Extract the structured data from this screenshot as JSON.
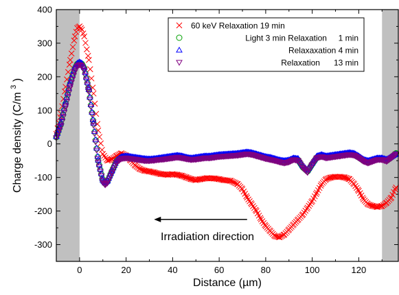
{
  "chart_data": {
    "type": "scatter",
    "xlabel": "Distance (µm)",
    "ylabel": "Charge density (C/m",
    "ylabel_sup": "3",
    "ylabel_close": ")",
    "xlim": [
      -10,
      137
    ],
    "ylim": [
      -350,
      400
    ],
    "x_ticks": [
      0,
      20,
      40,
      60,
      80,
      100,
      120
    ],
    "x_tick_labels": [
      "0",
      "20",
      "40",
      "60",
      "80",
      "100",
      "120"
    ],
    "y_ticks": [
      -300,
      -200,
      -100,
      0,
      100,
      200,
      300,
      400
    ],
    "y_tick_labels": [
      "-300",
      "-200",
      "-100",
      "0",
      "100",
      "200",
      "300",
      "400"
    ],
    "shaded_regions": [
      [
        -10,
        0
      ],
      [
        130,
        137
      ]
    ],
    "shade_color": "#c0c0c0",
    "grid": false,
    "legend_position": "top-right",
    "annotation": {
      "text": "Irradiation direction",
      "arrow_from": [
        72,
        -225
      ],
      "arrow_to": [
        32,
        -225
      ]
    },
    "series": [
      {
        "name": "60 keV Relaxation 19 min",
        "marker": "x",
        "color": "#ff0000",
        "x": [
          -10,
          -8,
          -6,
          -4,
          -2,
          -1,
          0,
          1,
          2,
          4,
          6,
          8,
          10,
          12,
          14,
          16,
          18,
          20,
          22,
          24,
          26,
          28,
          30,
          32,
          35,
          38,
          40,
          42,
          44,
          46,
          48,
          50,
          52,
          55,
          58,
          60,
          62,
          65,
          68,
          70,
          72,
          74,
          76,
          78,
          80,
          82,
          84,
          86,
          88,
          90,
          92,
          94,
          96,
          98,
          100,
          102,
          104,
          106,
          108,
          110,
          112,
          114,
          116,
          118,
          120,
          122,
          124,
          126,
          128,
          130,
          132,
          134,
          136
        ],
        "y": [
          30,
          90,
          170,
          250,
          320,
          345,
          350,
          340,
          320,
          250,
          150,
          40,
          -30,
          -50,
          -45,
          -35,
          -28,
          -35,
          -50,
          -65,
          -75,
          -80,
          -82,
          -85,
          -90,
          -92,
          -90,
          -92,
          -95,
          -100,
          -105,
          -108,
          -105,
          -102,
          -103,
          -105,
          -108,
          -110,
          -120,
          -135,
          -160,
          -180,
          -200,
          -225,
          -245,
          -260,
          -275,
          -278,
          -270,
          -255,
          -240,
          -225,
          -210,
          -190,
          -170,
          -145,
          -120,
          -105,
          -100,
          -98,
          -98,
          -100,
          -105,
          -120,
          -140,
          -165,
          -180,
          -185,
          -188,
          -185,
          -175,
          -160,
          -130
        ]
      },
      {
        "name": "Light 3 min Relaxation     1 min",
        "marker": "o",
        "color": "#00a000",
        "x": [
          -10,
          -8,
          -6,
          -4,
          -2,
          -1,
          0,
          1,
          2,
          4,
          6,
          8,
          10,
          11,
          12,
          14,
          16,
          18,
          20,
          22,
          24,
          26,
          28,
          30,
          32,
          34,
          36,
          38,
          40,
          42,
          44,
          46,
          48,
          50,
          52,
          54,
          56,
          58,
          60,
          62,
          64,
          66,
          68,
          70,
          72,
          74,
          76,
          78,
          80,
          82,
          84,
          86,
          88,
          90,
          92,
          94,
          96,
          98,
          100,
          102,
          104,
          106,
          108,
          110,
          112,
          114,
          116,
          118,
          120,
          122,
          124,
          126,
          128,
          130,
          132,
          134,
          136
        ],
        "y": [
          20,
          60,
          120,
          180,
          225,
          238,
          242,
          238,
          225,
          160,
          60,
          -50,
          -110,
          -118,
          -112,
          -80,
          -50,
          -40,
          -40,
          -42,
          -44,
          -46,
          -48,
          -48,
          -47,
          -45,
          -44,
          -42,
          -40,
          -38,
          -40,
          -43,
          -45,
          -44,
          -42,
          -40,
          -40,
          -38,
          -36,
          -35,
          -34,
          -33,
          -32,
          -30,
          -28,
          -30,
          -34,
          -38,
          -42,
          -45,
          -48,
          -52,
          -55,
          -52,
          -45,
          -48,
          -70,
          -82,
          -60,
          -40,
          -36,
          -40,
          -38,
          -36,
          -34,
          -32,
          -30,
          -32,
          -40,
          -50,
          -55,
          -50,
          -45,
          -45,
          -50,
          -40,
          -28
        ]
      },
      {
        "name": "Relaxaxation 4 min",
        "marker": "^",
        "color": "#0000ff",
        "x": [
          -10,
          -8,
          -6,
          -4,
          -2,
          -1,
          0,
          1,
          2,
          4,
          6,
          8,
          10,
          11,
          12,
          14,
          16,
          18,
          20,
          22,
          24,
          26,
          28,
          30,
          32,
          34,
          36,
          38,
          40,
          42,
          44,
          46,
          48,
          50,
          52,
          54,
          56,
          58,
          60,
          62,
          64,
          66,
          68,
          70,
          72,
          74,
          76,
          78,
          80,
          82,
          84,
          86,
          88,
          90,
          92,
          94,
          96,
          98,
          100,
          102,
          104,
          106,
          108,
          110,
          112,
          114,
          116,
          118,
          120,
          122,
          124,
          126,
          128,
          130,
          132,
          134,
          136
        ],
        "y": [
          22,
          65,
          125,
          185,
          230,
          240,
          244,
          240,
          228,
          162,
          62,
          -48,
          -108,
          -116,
          -110,
          -78,
          -48,
          -38,
          -36,
          -38,
          -40,
          -42,
          -44,
          -45,
          -44,
          -42,
          -40,
          -38,
          -36,
          -34,
          -36,
          -40,
          -42,
          -40,
          -38,
          -36,
          -36,
          -34,
          -32,
          -31,
          -30,
          -29,
          -28,
          -26,
          -24,
          -26,
          -30,
          -34,
          -38,
          -40,
          -44,
          -48,
          -50,
          -48,
          -42,
          -44,
          -65,
          -78,
          -56,
          -36,
          -32,
          -36,
          -34,
          -32,
          -30,
          -28,
          -26,
          -28,
          -36,
          -46,
          -50,
          -46,
          -42,
          -42,
          -46,
          -38,
          -30
        ]
      },
      {
        "name": "Relaxation      13 min",
        "marker": "v",
        "color": "#800080",
        "x": [
          -10,
          -8,
          -6,
          -4,
          -2,
          -1,
          0,
          1,
          2,
          4,
          6,
          8,
          10,
          11,
          12,
          14,
          16,
          18,
          20,
          22,
          24,
          26,
          28,
          30,
          32,
          34,
          36,
          38,
          40,
          42,
          44,
          46,
          48,
          50,
          52,
          54,
          56,
          58,
          60,
          62,
          64,
          66,
          68,
          70,
          72,
          74,
          76,
          78,
          80,
          82,
          84,
          86,
          88,
          90,
          92,
          94,
          96,
          98,
          100,
          102,
          104,
          106,
          108,
          110,
          112,
          114,
          116,
          118,
          120,
          122,
          124,
          126,
          128,
          130,
          132,
          134,
          136
        ],
        "y": [
          18,
          55,
          112,
          172,
          218,
          232,
          236,
          232,
          218,
          155,
          55,
          -55,
          -115,
          -122,
          -116,
          -84,
          -54,
          -44,
          -42,
          -44,
          -46,
          -48,
          -50,
          -50,
          -49,
          -47,
          -46,
          -44,
          -42,
          -40,
          -42,
          -45,
          -47,
          -46,
          -44,
          -42,
          -42,
          -40,
          -38,
          -37,
          -36,
          -35,
          -34,
          -32,
          -30,
          -32,
          -36,
          -40,
          -44,
          -47,
          -50,
          -54,
          -57,
          -54,
          -47,
          -50,
          -72,
          -85,
          -62,
          -42,
          -38,
          -42,
          -40,
          -38,
          -36,
          -34,
          -32,
          -34,
          -42,
          -52,
          -57,
          -52,
          -47,
          -47,
          -52,
          -42,
          -30
        ]
      }
    ]
  }
}
